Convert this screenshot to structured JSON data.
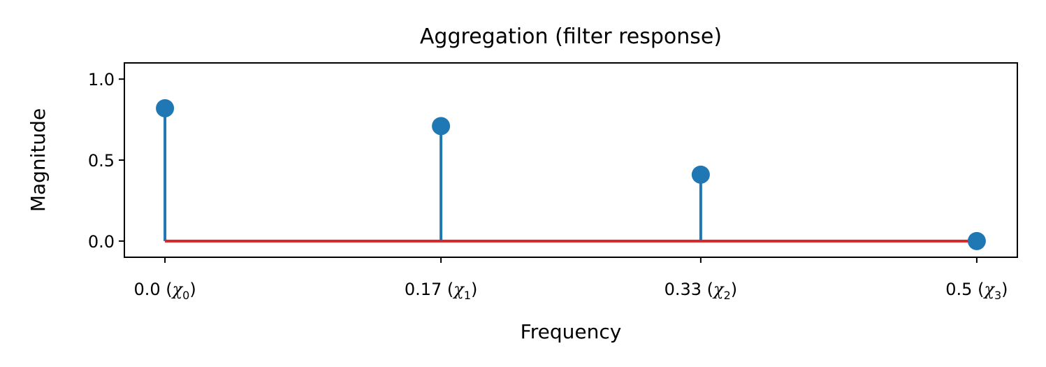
{
  "chart_data": {
    "type": "stem",
    "title": "Aggregation (filter response)",
    "xlabel": "Frequency",
    "ylabel": "Magnitude",
    "x": [
      0.0,
      0.17,
      0.33,
      0.5
    ],
    "xtick_labels": [
      {
        "main": "0.0 (",
        "sym": "χ",
        "sub": "0",
        "close": ")"
      },
      {
        "main": "0.17 (",
        "sym": "χ",
        "sub": "1",
        "close": ")"
      },
      {
        "main": "0.33 (",
        "sym": "χ",
        "sub": "2",
        "close": ")"
      },
      {
        "main": "0.5 (",
        "sym": "χ",
        "sub": "3",
        "close": ")"
      }
    ],
    "values": [
      0.82,
      0.71,
      0.41,
      0.0
    ],
    "yticks": [
      0.0,
      0.5,
      1.0
    ],
    "ytick_labels": [
      "0.0",
      "0.5",
      "1.0"
    ],
    "ylim": [
      -0.1,
      1.1
    ],
    "xlim": [
      -0.025,
      0.525
    ],
    "baseline": 0.0,
    "colors": {
      "stem": "#1f77b4",
      "marker": "#1f77b4",
      "baseline": "#d62728"
    },
    "grid": false,
    "legend": "none"
  }
}
